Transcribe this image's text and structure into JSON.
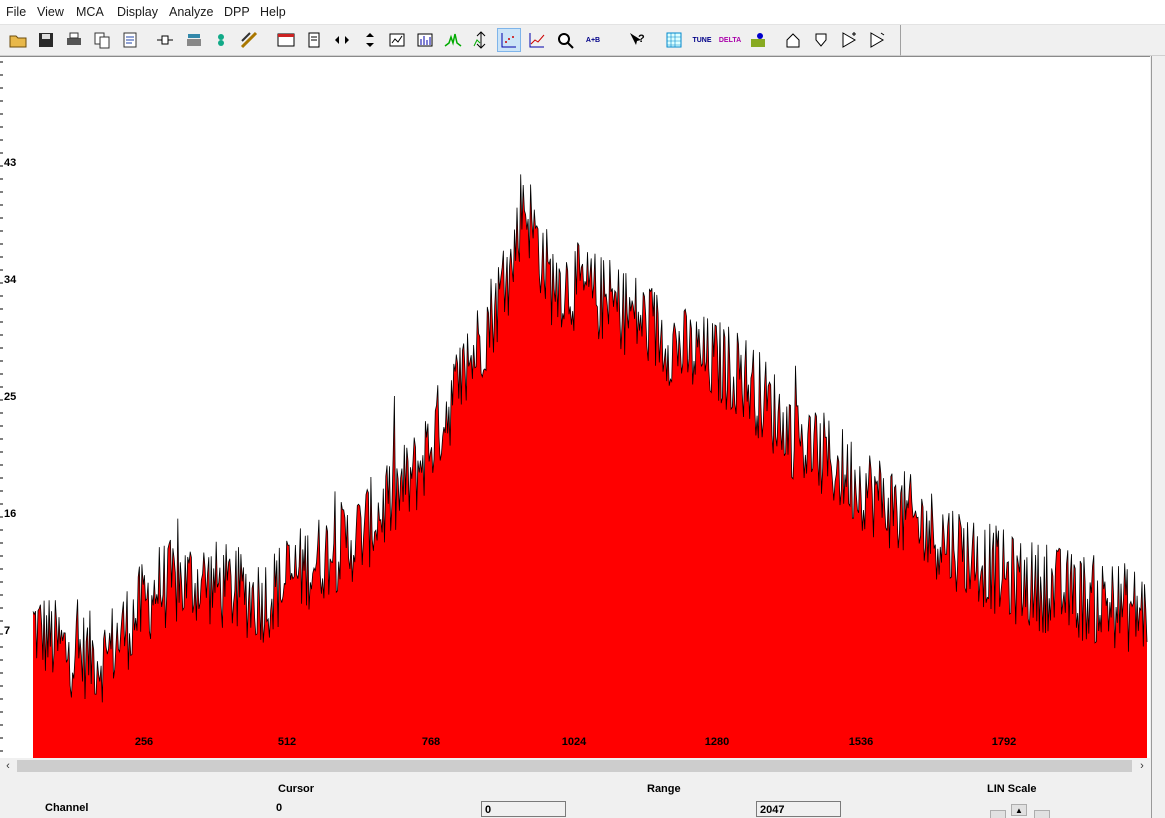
{
  "menu": [
    "File",
    "View",
    "MCA",
    "Display",
    "Analyze",
    "DPP",
    "Help"
  ],
  "toolbar": {
    "buttons": [
      {
        "name": "open-icon"
      },
      {
        "name": "save-icon"
      },
      {
        "name": "print-icon"
      },
      {
        "name": "copy-icon"
      },
      {
        "name": "report-icon"
      },
      {
        "name": "acquire-icon"
      },
      {
        "name": "preset-icon"
      },
      {
        "name": "calibrate-icon"
      },
      {
        "name": "roi-icon"
      },
      {
        "name": "spectrum-window-icon"
      },
      {
        "name": "notes-icon"
      },
      {
        "name": "expand-horizontal-icon"
      },
      {
        "name": "expand-vertical-icon"
      },
      {
        "name": "zoom-window-icon"
      },
      {
        "name": "bar-chart-icon"
      },
      {
        "name": "peak-icon"
      },
      {
        "name": "autoscale-icon"
      },
      {
        "name": "scatter-plot-icon",
        "active": true
      },
      {
        "name": "line-plot-icon"
      },
      {
        "name": "zoom-icon"
      },
      {
        "name": "add-spectra-icon",
        "text": "A+B"
      },
      {
        "name": "help-icon"
      },
      {
        "name": "grid-icon"
      },
      {
        "name": "tune-fast-icon",
        "text": "TUNE"
      },
      {
        "name": "delta-icon",
        "text": "DELTA"
      },
      {
        "name": "info-icon"
      },
      {
        "name": "home-icon"
      },
      {
        "name": "shield-icon"
      },
      {
        "name": "play-plus-icon"
      },
      {
        "name": "play-icon"
      }
    ]
  },
  "spectrum": {
    "fill_color": "#ff0000",
    "outline_color": "#000000",
    "y_ticks": [
      "43",
      "34",
      "25",
      "16",
      "7"
    ],
    "x_ticks": [
      "256",
      "512",
      "768",
      "1024",
      "1280",
      "1536",
      "1792"
    ]
  },
  "chart_data": {
    "type": "area",
    "x_range": [
      0,
      2047
    ],
    "y_range": [
      0,
      48
    ],
    "envelope": [
      {
        "x": 0,
        "y": 7.5
      },
      {
        "x": 60,
        "y": 5.5
      },
      {
        "x": 130,
        "y": 5.0
      },
      {
        "x": 165,
        "y": 7.0
      },
      {
        "x": 230,
        "y": 10.5
      },
      {
        "x": 310,
        "y": 11.0
      },
      {
        "x": 420,
        "y": 9.5
      },
      {
        "x": 500,
        "y": 12.0
      },
      {
        "x": 600,
        "y": 14.5
      },
      {
        "x": 700,
        "y": 19.0
      },
      {
        "x": 800,
        "y": 27.5
      },
      {
        "x": 880,
        "y": 35.0
      },
      {
        "x": 900,
        "y": 40.5
      },
      {
        "x": 950,
        "y": 34.0
      },
      {
        "x": 1000,
        "y": 33.5
      },
      {
        "x": 1100,
        "y": 31.5
      },
      {
        "x": 1200,
        "y": 28.5
      },
      {
        "x": 1300,
        "y": 27.0
      },
      {
        "x": 1400,
        "y": 22.0
      },
      {
        "x": 1500,
        "y": 19.0
      },
      {
        "x": 1600,
        "y": 16.0
      },
      {
        "x": 1700,
        "y": 13.5
      },
      {
        "x": 1800,
        "y": 11.0
      },
      {
        "x": 1900,
        "y": 10.0
      },
      {
        "x": 2000,
        "y": 9.0
      },
      {
        "x": 2047,
        "y": 8.5
      }
    ],
    "noise_amplitude": 3.5,
    "max_value": 47
  },
  "status": {
    "cursor_label": "Cursor",
    "range_label": "Range",
    "scale_label": "LIN Scale",
    "channel_label": "Channel",
    "channel_value": "0",
    "range_start": "0",
    "range_end": "2047"
  }
}
